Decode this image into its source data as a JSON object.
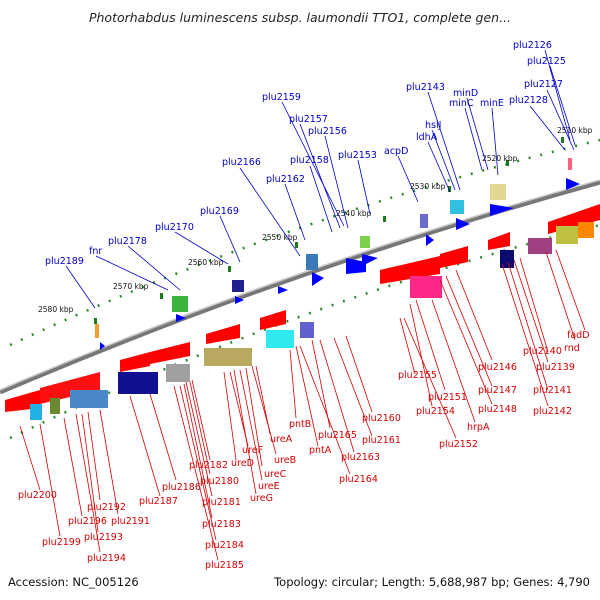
{
  "title": "Photorhabdus luminescens subsp. laumondii TTO1, complete gen...",
  "footer": {
    "accession": "Accession: NC_005126",
    "summary": "Topology: circular; Length: 5,688,987 bp; Genes: 4,790"
  },
  "colors": {
    "top_label": "#0000c8",
    "bottom_label": "#d40000",
    "strand_plus": "#0000ff",
    "strand_minus": "#ff0000"
  },
  "scale_labels": [
    "2510 kbp",
    "2520 kbp",
    "2530 kbp",
    "2540 kbp",
    "2550 kbp",
    "2560 kbp",
    "2570 kbp",
    "2580 kbp"
  ],
  "top_labels": [
    "plu2126",
    "plu2125",
    "plu2127",
    "plu2128",
    "minD",
    "minC",
    "minE",
    "plu2143",
    "hslJ",
    "ldhA",
    "acpD",
    "plu2159",
    "plu2157",
    "plu2156",
    "plu2153",
    "plu2158",
    "plu2166",
    "plu2162",
    "plu2169",
    "plu2170",
    "plu2178",
    "fnr",
    "plu2189"
  ],
  "bottom_labels": [
    "fadD",
    "rnd",
    "plu2140",
    "plu2139",
    "plu2141",
    "plu2142",
    "plu2146",
    "plu2147",
    "plu2148",
    "plu2155",
    "plu2151",
    "plu2154",
    "hrpA",
    "plu2152",
    "plu2160",
    "plu2161",
    "plu2165",
    "plu2163",
    "plu2164",
    "pntB",
    "pntA",
    "ureA",
    "ureB",
    "ureC",
    "ureE",
    "ureG",
    "ureF",
    "ureD",
    "plu2182",
    "plu2180",
    "plu2181",
    "plu2183",
    "plu2184",
    "plu2185",
    "plu2186",
    "plu2187",
    "plu2191",
    "plu2192",
    "plu2193",
    "plu2194",
    "plu2196",
    "plu2199",
    "plu2200"
  ]
}
